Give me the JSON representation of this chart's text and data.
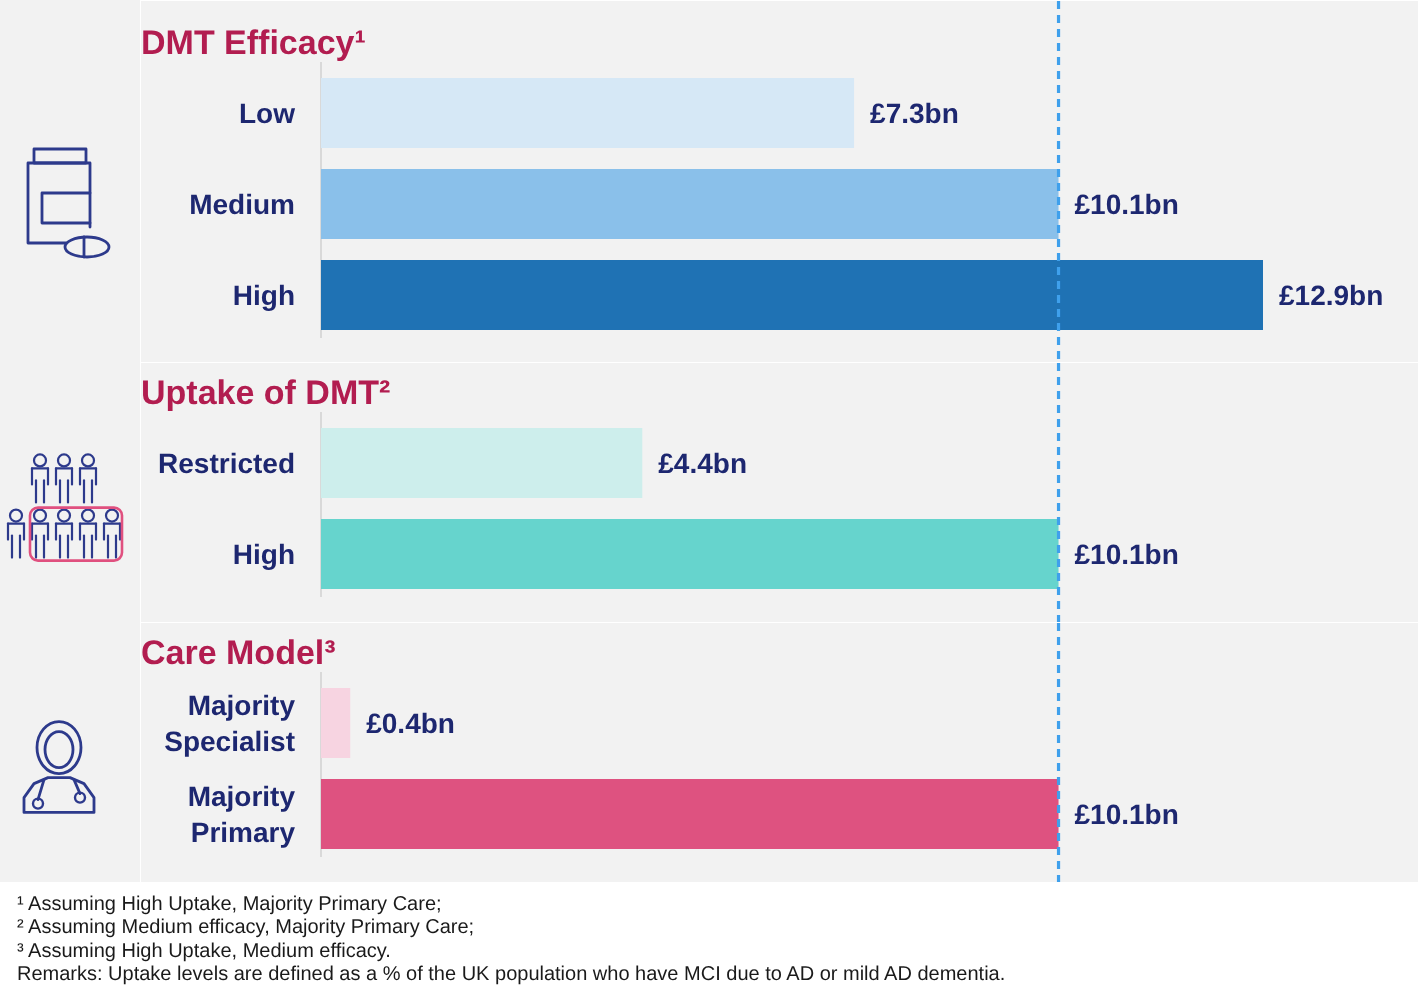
{
  "chart_data": [
    {
      "type": "bar",
      "orientation": "horizontal",
      "title": "DMT Efficacy¹",
      "categories": [
        "Low",
        "Medium",
        "High"
      ],
      "values": [
        7.3,
        10.1,
        12.9
      ],
      "colors": [
        "#d6e8f6",
        "#8ac0ea",
        "#1f72b4"
      ],
      "value_labels": [
        "£7.3bn",
        "£10.1bn",
        "£12.9bn"
      ],
      "ref_lines": [
        {
          "axis": "x",
          "value": 10.1,
          "color": "#3fa0ec",
          "line_style": "dashed"
        }
      ]
    },
    {
      "type": "bar",
      "orientation": "horizontal",
      "title": "Uptake of DMT²",
      "categories": [
        "Restricted",
        "High"
      ],
      "values": [
        4.4,
        10.1
      ],
      "colors": [
        "#cdeeec",
        "#66d4cd"
      ],
      "value_labels": [
        "£4.4bn",
        "£10.1bn"
      ],
      "ref_lines": [
        {
          "axis": "x",
          "value": 10.1,
          "color": "#3fa0ec",
          "line_style": "dashed"
        }
      ]
    },
    {
      "type": "bar",
      "orientation": "horizontal",
      "title": "Care Model³",
      "categories": [
        "Majority Specialist",
        "Majority Primary"
      ],
      "values": [
        0.4,
        10.1
      ],
      "colors": [
        "#f7d4e1",
        "#de5280"
      ],
      "value_labels": [
        "£0.4bn",
        "£10.1bn"
      ],
      "ref_lines": [
        {
          "axis": "x",
          "value": 10.1,
          "color": "#3fa0ec",
          "line_style": "dashed"
        }
      ],
      "annotations": [
        "¹ Assuming High Uptake, Majority Primary Care;",
        "² Assuming Medium efficacy, Majority Primary Care;",
        "³ Assuming High Uptake, Medium efficacy.",
        "Remarks: Uptake levels are defined as a % of the UK population who have MCI due to AD or mild AD dementia."
      ]
    }
  ]
}
